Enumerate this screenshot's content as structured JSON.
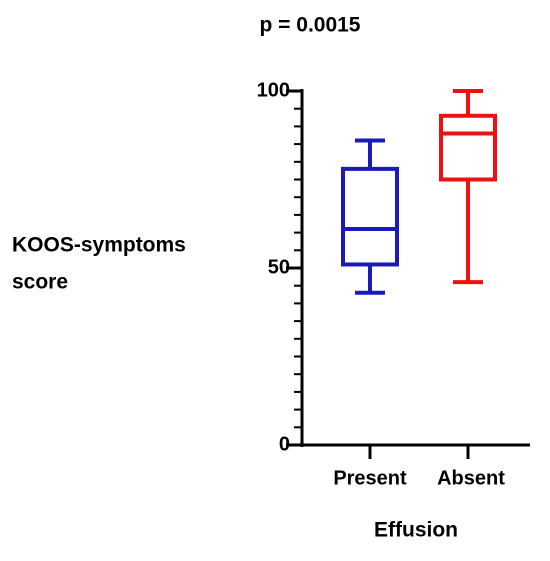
{
  "chart_data": {
    "type": "box",
    "title": "p = 0.0015",
    "ylabel": [
      "KOOS-symptoms",
      "score"
    ],
    "xlabel": "Effusion",
    "categories": [
      "Present",
      "Absent"
    ],
    "series": [
      {
        "color": "#1a1ab8",
        "min": 43,
        "q1": 51,
        "median": 61,
        "q3": 78,
        "max": 86
      },
      {
        "color": "#ee1111",
        "min": 46,
        "q1": 75,
        "median": 88,
        "q3": 93,
        "max": 100
      }
    ],
    "ylim": [
      0,
      100
    ],
    "yticks": [
      0,
      50,
      100
    ],
    "yminorticks": [
      5,
      10,
      15,
      20,
      25,
      30,
      35,
      40,
      45,
      55,
      60,
      65,
      70,
      75,
      80,
      85,
      90,
      95
    ]
  }
}
